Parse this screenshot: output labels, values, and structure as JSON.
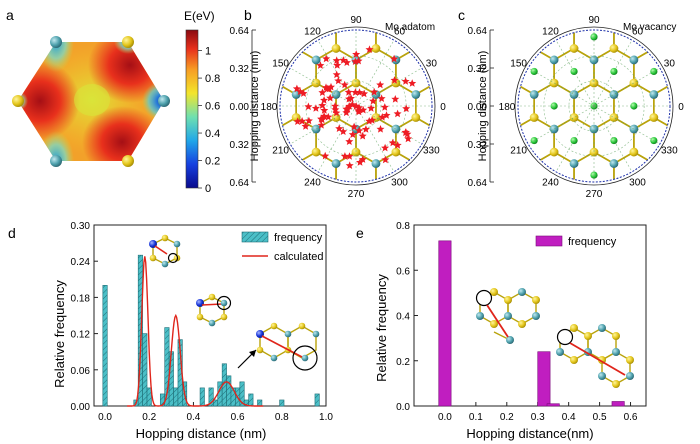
{
  "panels": {
    "a": {
      "letter": "a",
      "colorbar_label": "E(eV)",
      "colorbar_ticks": [
        "0",
        "0.2",
        "0.4",
        "0.6",
        "0.8",
        "1"
      ],
      "colors": {
        "high": "#d7191c",
        "mid": "#f3e52b",
        "low": "#1e3cc8"
      }
    },
    "b": {
      "letter": "b",
      "title": "Mo adatom",
      "ylabel": "Hopping distance (nm)",
      "radial_ticks": [
        "0.64",
        "0.32",
        "0.00",
        "0.32",
        "0.64"
      ],
      "angle_labels": [
        "0",
        "30",
        "60",
        "90",
        "120",
        "150",
        "180",
        "210",
        "240",
        "270",
        "300",
        "330"
      ]
    },
    "c": {
      "letter": "c",
      "title": "Mo vacancy",
      "ylabel": "Hopping distance (nm)",
      "radial_ticks": [
        "0.64",
        "0.32",
        "0.00",
        "0.32",
        "0.64"
      ],
      "angle_labels": [
        "0",
        "30",
        "60",
        "90",
        "120",
        "150",
        "180",
        "210",
        "240",
        "270",
        "300",
        "330"
      ]
    }
  },
  "chart_data": [
    {
      "panel": "d",
      "type": "bar",
      "letter": "d",
      "xlabel": "Hopping distance (nm)",
      "ylabel": "Relative frequency",
      "xlim": [
        -0.05,
        1.0
      ],
      "ylim": [
        0,
        0.3
      ],
      "xticks": [
        "0.0",
        "0.2",
        "0.4",
        "0.6",
        "0.8",
        "1.0"
      ],
      "yticks": [
        "0.00",
        "0.06",
        "0.12",
        "0.18",
        "0.24",
        "0.30"
      ],
      "bar_width": 0.02,
      "series": [
        {
          "name": "frequency",
          "color": "#4bbfc7",
          "x": [
            0.0,
            0.14,
            0.16,
            0.18,
            0.2,
            0.26,
            0.28,
            0.3,
            0.32,
            0.34,
            0.36,
            0.44,
            0.48,
            0.5,
            0.52,
            0.54,
            0.56,
            0.58,
            0.6,
            0.62,
            0.64,
            0.66,
            0.7,
            0.8,
            0.96
          ],
          "values": [
            0.2,
            0.01,
            0.25,
            0.12,
            0.03,
            0.02,
            0.13,
            0.09,
            0.03,
            0.11,
            0.04,
            0.03,
            0.03,
            0.01,
            0.04,
            0.07,
            0.05,
            0.03,
            0.03,
            0.04,
            0.01,
            0.02,
            0.01,
            0.01,
            0.02
          ]
        },
        {
          "name": "calculated",
          "color": "#e0251b",
          "gaussians": [
            {
              "mu": 0.18,
              "sigma": 0.014,
              "amp": 0.248
            },
            {
              "mu": 0.32,
              "sigma": 0.02,
              "amp": 0.15
            },
            {
              "mu": 0.55,
              "sigma": 0.035,
              "amp": 0.04
            }
          ]
        }
      ],
      "legend": [
        "frequency",
        "calculated"
      ]
    },
    {
      "panel": "e",
      "type": "bar",
      "letter": "e",
      "xlabel": "Hopping distance(nm)",
      "ylabel": "Relative frequency",
      "xlim": [
        -0.1,
        0.65
      ],
      "ylim": [
        0,
        0.8
      ],
      "xticks": [
        "0.0",
        "0.1",
        "0.2",
        "0.3",
        "0.4",
        "0.5",
        "0.6"
      ],
      "yticks": [
        "0.0",
        "0.2",
        "0.4",
        "0.6",
        "0.8"
      ],
      "bar_width": 0.04,
      "series": [
        {
          "name": "frequency",
          "color": "#c01ec0",
          "x": [
            0.0,
            0.32,
            0.35,
            0.56
          ],
          "values": [
            0.73,
            0.24,
            0.01,
            0.02
          ]
        }
      ],
      "legend": [
        "frequency"
      ]
    }
  ]
}
